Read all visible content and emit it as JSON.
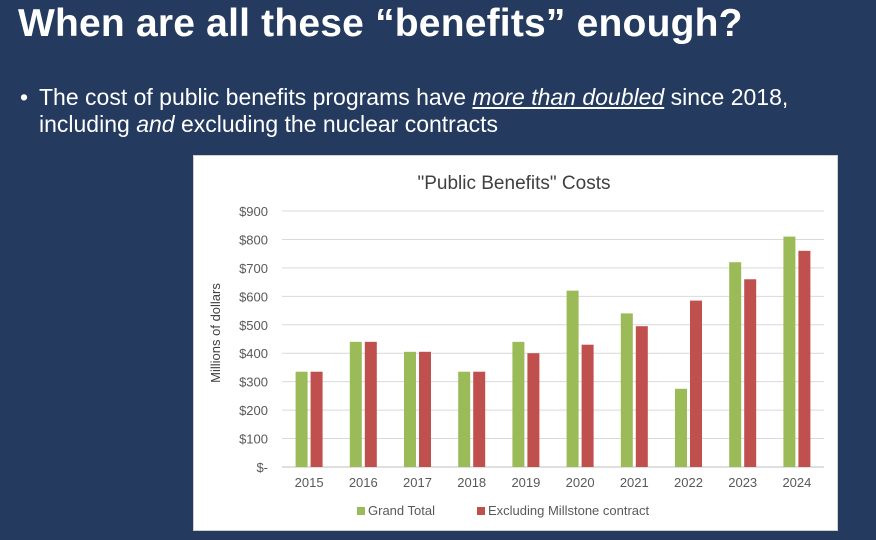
{
  "slide": {
    "title": "When are all these “benefits” enough?",
    "bullet_symbol": "•",
    "bullet_part1": "The cost of public benefits programs have ",
    "bullet_emph": "more than doubled",
    "bullet_part2": " since 2018, including ",
    "bullet_and": "and",
    "bullet_part3": " excluding the nuclear contracts"
  },
  "colors": {
    "background": "#243a5e",
    "grand_total": "#9bbb59",
    "excluding": "#c0504d"
  },
  "chart_data": {
    "type": "bar",
    "title": "\"Public Benefits\" Costs",
    "xlabel": "",
    "ylabel": "Millions of dollars",
    "ylim": [
      0,
      900
    ],
    "yticks": [
      0,
      100,
      200,
      300,
      400,
      500,
      600,
      700,
      800,
      900
    ],
    "ytick_labels": [
      "$-",
      "$100",
      "$200",
      "$300",
      "$400",
      "$500",
      "$600",
      "$700",
      "$800",
      "$900"
    ],
    "grid": true,
    "legend_position": "bottom",
    "categories": [
      "2015",
      "2016",
      "2017",
      "2018",
      "2019",
      "2020",
      "2021",
      "2022",
      "2023",
      "2024"
    ],
    "series": [
      {
        "name": "Grand Total",
        "color": "#9bbb59",
        "values": [
          335,
          440,
          405,
          335,
          440,
          620,
          540,
          275,
          720,
          810
        ]
      },
      {
        "name": "Excluding Millstone contract",
        "color": "#c0504d",
        "values": [
          335,
          440,
          405,
          335,
          400,
          430,
          495,
          585,
          660,
          760
        ]
      }
    ]
  }
}
